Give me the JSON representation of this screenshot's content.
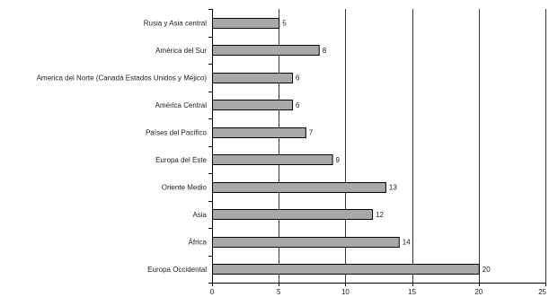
{
  "chart_data": {
    "type": "bar",
    "orientation": "horizontal",
    "categories": [
      "Rusia y Asia central",
      "América del Sur",
      "America del Norte (Canadá Estados Unidos y Méjico)",
      "América Central",
      "Países del Pacífico",
      "Europa del Este",
      "Oriente Medio",
      "Asia",
      "África",
      "Europa Occidental"
    ],
    "values": [
      5,
      8,
      6,
      6,
      7,
      9,
      13,
      12,
      14,
      20
    ],
    "data_labels": [
      "5",
      "8",
      "6",
      "6",
      "7",
      "9",
      "13",
      "12",
      "14",
      "20"
    ],
    "x_ticks": [
      "0",
      "5",
      "10",
      "15",
      "20",
      "25"
    ],
    "xlim": [
      0,
      25
    ],
    "grid": "vertical major gridlines",
    "legend": "none",
    "title": "",
    "xlabel": "",
    "ylabel": "",
    "colors": {
      "bar_fill": "#a8a8a8",
      "bar_stroke": "#000000",
      "grid": "#000000",
      "axis": "#000000",
      "text": "#222222"
    }
  }
}
